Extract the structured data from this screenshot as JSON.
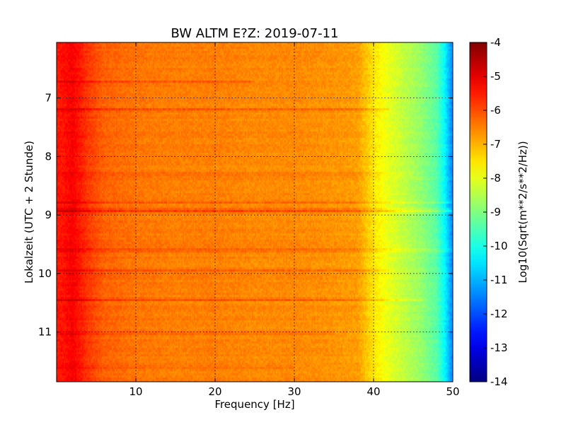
{
  "chart_data": {
    "type": "heatmap",
    "title": "BW ALTM E?Z: 2019-07-11",
    "xlabel": "Frequency [Hz]",
    "ylabel": "Lokalzeit (UTC + 2 Stunde)",
    "xlim": [
      0,
      50
    ],
    "ylim": [
      11.85,
      6.05
    ],
    "y_inverted": true,
    "x_ticks": [
      10,
      20,
      30,
      40,
      50
    ],
    "y_ticks": [
      7,
      8,
      9,
      10,
      11
    ],
    "grid": true,
    "colormap": "jet",
    "colorbar": {
      "label": "Log10(Sqrt(m**2/s**2/Hz))",
      "range": [
        -14,
        -4
      ],
      "ticks": [
        -4,
        -5,
        -6,
        -7,
        -8,
        -9,
        -10,
        -11,
        -12,
        -13,
        -14
      ]
    },
    "level_profile": {
      "frequency_hz": [
        0,
        1,
        2,
        3,
        4,
        5,
        6,
        8,
        10,
        15,
        20,
        25,
        30,
        35,
        38,
        40,
        42,
        44,
        46,
        48,
        49,
        50
      ],
      "log10_amplitude": [
        -5.5,
        -5.4,
        -5.2,
        -5.5,
        -5.8,
        -6.0,
        -6.2,
        -6.3,
        -6.4,
        -6.5,
        -6.5,
        -6.6,
        -6.6,
        -6.7,
        -6.8,
        -7.5,
        -8.0,
        -8.4,
        -8.8,
        -9.4,
        -10.3,
        -11.5
      ]
    },
    "bands": [
      {
        "time": 6.72,
        "log10_delta": 0.45,
        "fmax": 25
      },
      {
        "time": 7.2,
        "log10_delta": 0.8,
        "fmax": 42
      },
      {
        "time": 8.3,
        "log10_delta": 0.4,
        "fmax": 45
      },
      {
        "time": 8.78,
        "log10_delta": 0.55,
        "fmax": 50
      },
      {
        "time": 8.92,
        "log10_delta": 1.1,
        "fmax": 50
      },
      {
        "time": 9.6,
        "log10_delta": 0.6,
        "fmax": 50
      },
      {
        "time": 9.95,
        "log10_delta": 0.45,
        "fmax": 42
      },
      {
        "time": 10.45,
        "log10_delta": 0.6,
        "fmax": 46
      },
      {
        "time": 11.02,
        "log10_delta": 0.6,
        "fmax": 35
      },
      {
        "time": 11.6,
        "log10_delta": 0.35,
        "fmax": 30
      }
    ]
  }
}
